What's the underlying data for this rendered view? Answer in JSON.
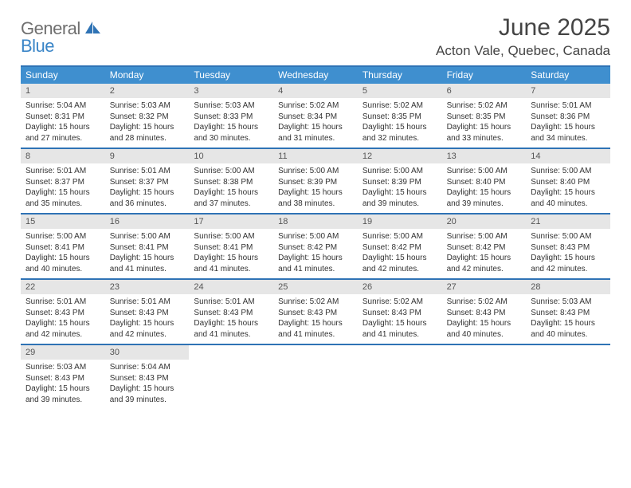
{
  "logo": {
    "line1": "General",
    "line2": "Blue"
  },
  "title": "June 2025",
  "location": "Acton Vale, Quebec, Canada",
  "colors": {
    "header_bar": "#3f8fcf",
    "rule": "#2f73b5",
    "daynum_bg": "#e6e6e6",
    "logo_gray": "#6f6f6f",
    "logo_blue": "#3a85c7"
  },
  "dow": [
    "Sunday",
    "Monday",
    "Tuesday",
    "Wednesday",
    "Thursday",
    "Friday",
    "Saturday"
  ],
  "weeks": [
    [
      {
        "n": "1",
        "sr": "5:04 AM",
        "ss": "8:31 PM",
        "dl": "15 hours and 27 minutes."
      },
      {
        "n": "2",
        "sr": "5:03 AM",
        "ss": "8:32 PM",
        "dl": "15 hours and 28 minutes."
      },
      {
        "n": "3",
        "sr": "5:03 AM",
        "ss": "8:33 PM",
        "dl": "15 hours and 30 minutes."
      },
      {
        "n": "4",
        "sr": "5:02 AM",
        "ss": "8:34 PM",
        "dl": "15 hours and 31 minutes."
      },
      {
        "n": "5",
        "sr": "5:02 AM",
        "ss": "8:35 PM",
        "dl": "15 hours and 32 minutes."
      },
      {
        "n": "6",
        "sr": "5:02 AM",
        "ss": "8:35 PM",
        "dl": "15 hours and 33 minutes."
      },
      {
        "n": "7",
        "sr": "5:01 AM",
        "ss": "8:36 PM",
        "dl": "15 hours and 34 minutes."
      }
    ],
    [
      {
        "n": "8",
        "sr": "5:01 AM",
        "ss": "8:37 PM",
        "dl": "15 hours and 35 minutes."
      },
      {
        "n": "9",
        "sr": "5:01 AM",
        "ss": "8:37 PM",
        "dl": "15 hours and 36 minutes."
      },
      {
        "n": "10",
        "sr": "5:00 AM",
        "ss": "8:38 PM",
        "dl": "15 hours and 37 minutes."
      },
      {
        "n": "11",
        "sr": "5:00 AM",
        "ss": "8:39 PM",
        "dl": "15 hours and 38 minutes."
      },
      {
        "n": "12",
        "sr": "5:00 AM",
        "ss": "8:39 PM",
        "dl": "15 hours and 39 minutes."
      },
      {
        "n": "13",
        "sr": "5:00 AM",
        "ss": "8:40 PM",
        "dl": "15 hours and 39 minutes."
      },
      {
        "n": "14",
        "sr": "5:00 AM",
        "ss": "8:40 PM",
        "dl": "15 hours and 40 minutes."
      }
    ],
    [
      {
        "n": "15",
        "sr": "5:00 AM",
        "ss": "8:41 PM",
        "dl": "15 hours and 40 minutes."
      },
      {
        "n": "16",
        "sr": "5:00 AM",
        "ss": "8:41 PM",
        "dl": "15 hours and 41 minutes."
      },
      {
        "n": "17",
        "sr": "5:00 AM",
        "ss": "8:41 PM",
        "dl": "15 hours and 41 minutes."
      },
      {
        "n": "18",
        "sr": "5:00 AM",
        "ss": "8:42 PM",
        "dl": "15 hours and 41 minutes."
      },
      {
        "n": "19",
        "sr": "5:00 AM",
        "ss": "8:42 PM",
        "dl": "15 hours and 42 minutes."
      },
      {
        "n": "20",
        "sr": "5:00 AM",
        "ss": "8:42 PM",
        "dl": "15 hours and 42 minutes."
      },
      {
        "n": "21",
        "sr": "5:00 AM",
        "ss": "8:43 PM",
        "dl": "15 hours and 42 minutes."
      }
    ],
    [
      {
        "n": "22",
        "sr": "5:01 AM",
        "ss": "8:43 PM",
        "dl": "15 hours and 42 minutes."
      },
      {
        "n": "23",
        "sr": "5:01 AM",
        "ss": "8:43 PM",
        "dl": "15 hours and 42 minutes."
      },
      {
        "n": "24",
        "sr": "5:01 AM",
        "ss": "8:43 PM",
        "dl": "15 hours and 41 minutes."
      },
      {
        "n": "25",
        "sr": "5:02 AM",
        "ss": "8:43 PM",
        "dl": "15 hours and 41 minutes."
      },
      {
        "n": "26",
        "sr": "5:02 AM",
        "ss": "8:43 PM",
        "dl": "15 hours and 41 minutes."
      },
      {
        "n": "27",
        "sr": "5:02 AM",
        "ss": "8:43 PM",
        "dl": "15 hours and 40 minutes."
      },
      {
        "n": "28",
        "sr": "5:03 AM",
        "ss": "8:43 PM",
        "dl": "15 hours and 40 minutes."
      }
    ],
    [
      {
        "n": "29",
        "sr": "5:03 AM",
        "ss": "8:43 PM",
        "dl": "15 hours and 39 minutes."
      },
      {
        "n": "30",
        "sr": "5:04 AM",
        "ss": "8:43 PM",
        "dl": "15 hours and 39 minutes."
      },
      null,
      null,
      null,
      null,
      null
    ]
  ],
  "labels": {
    "sunrise": "Sunrise: ",
    "sunset": "Sunset: ",
    "daylight": "Daylight: "
  }
}
